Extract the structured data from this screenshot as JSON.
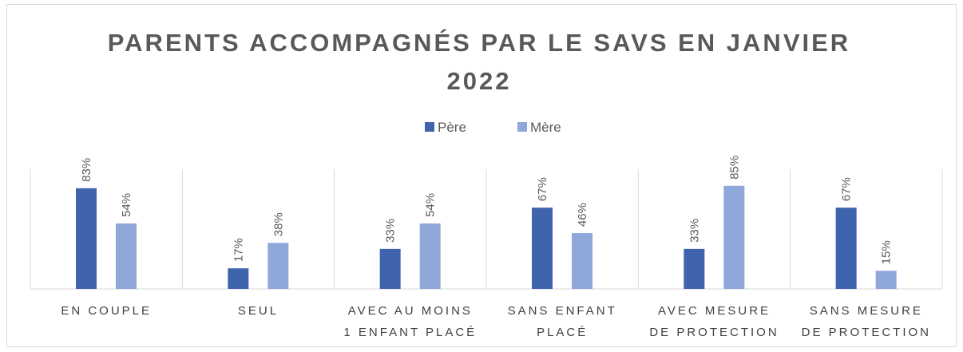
{
  "chart_data": {
    "type": "bar",
    "title": "PARENTS ACCOMPAGNÉS PAR LE SAVS EN JANVIER 2022",
    "categories": [
      "EN COUPLE",
      "SEUL",
      "AVEC AU MOINS\n1 ENFANT PLACÉ",
      "SANS ENFANT\nPLACÉ",
      "AVEC MESURE\nDE PROTECTION",
      "SANS MESURE\nDE PROTECTION"
    ],
    "series": [
      {
        "name": "Père",
        "color": "#3f63ad",
        "values": [
          83,
          17,
          33,
          67,
          33,
          67
        ],
        "value_labels": [
          "83%",
          "17%",
          "33%",
          "67%",
          "33%",
          "67%"
        ]
      },
      {
        "name": "Mère",
        "color": "#8fa8d9",
        "values": [
          54,
          38,
          54,
          46,
          85,
          15
        ],
        "value_labels": [
          "54%",
          "38%",
          "54%",
          "46%",
          "85%",
          "15%"
        ]
      }
    ],
    "ylim": [
      0,
      100
    ],
    "legend": "top"
  }
}
